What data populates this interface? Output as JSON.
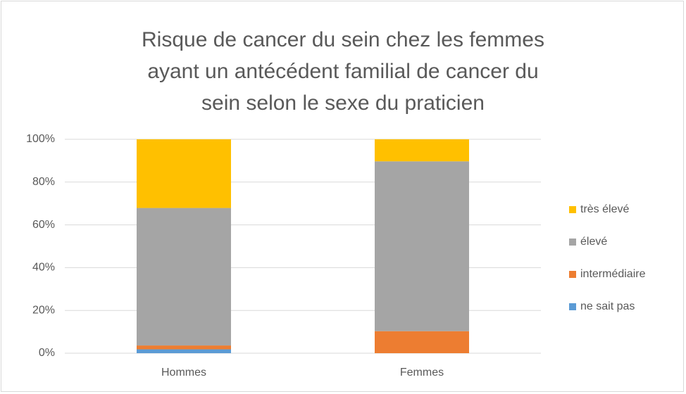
{
  "chart_data": {
    "type": "stacked_bar",
    "title": "Risque de cancer du sein chez les femmes ayant un antécédent familial de cancer du sein selon le sexe du praticien",
    "categories": [
      "Hommes",
      "Femmes"
    ],
    "series": [
      {
        "name": "ne sait pas",
        "color": "#5b9bd5",
        "values": [
          1.8,
          0
        ]
      },
      {
        "name": "intermédiaire",
        "color": "#ed7d31",
        "values": [
          1.8,
          10.3
        ]
      },
      {
        "name": "élevé",
        "color": "#a5a5a5",
        "values": [
          64.3,
          79.4
        ]
      },
      {
        "name": "très élevé",
        "color": "#ffc000",
        "values": [
          32.1,
          10.3
        ]
      }
    ],
    "ylim": [
      0,
      100
    ],
    "yticks": [
      {
        "value": 0,
        "label": "0%"
      },
      {
        "value": 20,
        "label": "20%"
      },
      {
        "value": 40,
        "label": "40%"
      },
      {
        "value": 60,
        "label": "60%"
      },
      {
        "value": 80,
        "label": "80%"
      },
      {
        "value": 100,
        "label": "100%"
      }
    ],
    "grid": true,
    "legend": "right"
  }
}
